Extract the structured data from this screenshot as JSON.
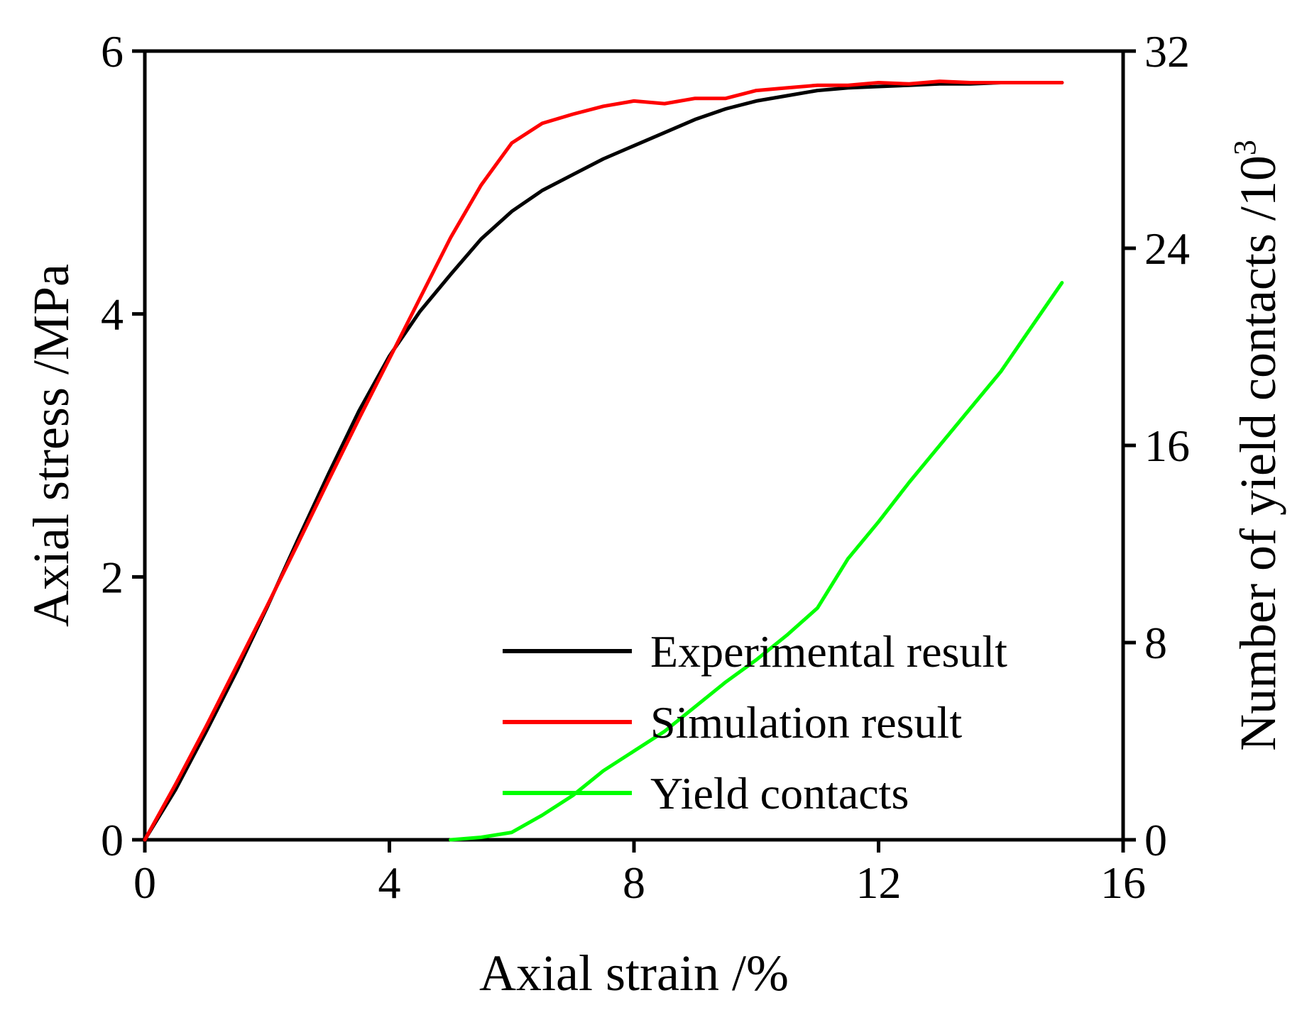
{
  "chart_data": {
    "type": "line",
    "title": "",
    "xlabel": "Axial strain /%",
    "ylabel_left": "Axial stress /MPa",
    "ylabel_right": "Number of yield contacts /10",
    "ylabel_right_superscript": "3",
    "xlim": [
      0,
      16
    ],
    "ylim_left": [
      0,
      6
    ],
    "ylim_right": [
      0,
      32
    ],
    "x_ticks": [
      "0",
      "4",
      "8",
      "12",
      "16"
    ],
    "y_left_ticks": [
      "0",
      "2",
      "4",
      "6"
    ],
    "y_right_ticks": [
      "0",
      "8",
      "16",
      "24",
      "32"
    ],
    "legend_position": "bottom-right",
    "series": [
      {
        "name": "Experimental result",
        "color": "#000000",
        "axis": "left",
        "x": [
          0,
          0.5,
          1,
          1.5,
          2,
          2.5,
          3,
          3.5,
          4,
          4.5,
          5,
          5.5,
          6,
          6.5,
          7,
          7.5,
          8,
          8.5,
          9,
          9.5,
          10,
          10.5,
          11,
          11.5,
          12,
          12.5,
          13,
          13.5,
          14,
          14.5,
          15
        ],
        "values": [
          0,
          0.38,
          0.82,
          1.28,
          1.77,
          2.28,
          2.78,
          3.26,
          3.68,
          4.02,
          4.3,
          4.57,
          4.78,
          4.94,
          5.06,
          5.18,
          5.28,
          5.38,
          5.48,
          5.56,
          5.62,
          5.66,
          5.7,
          5.72,
          5.73,
          5.74,
          5.75,
          5.75,
          5.76,
          5.76,
          5.76
        ]
      },
      {
        "name": "Simulation result",
        "color": "#ff0000",
        "axis": "left",
        "x": [
          0,
          0.5,
          1,
          1.5,
          2,
          2.5,
          3,
          3.5,
          4,
          4.5,
          5,
          5.5,
          6,
          6.5,
          7,
          7.5,
          8,
          8.5,
          9,
          9.5,
          10,
          10.5,
          11,
          11.5,
          12,
          12.5,
          13,
          13.5,
          14,
          14.5,
          15
        ],
        "values": [
          0,
          0.42,
          0.86,
          1.32,
          1.78,
          2.25,
          2.73,
          3.2,
          3.66,
          4.12,
          4.58,
          4.98,
          5.3,
          5.45,
          5.52,
          5.58,
          5.62,
          5.6,
          5.64,
          5.64,
          5.7,
          5.72,
          5.74,
          5.74,
          5.76,
          5.75,
          5.77,
          5.76,
          5.76,
          5.76,
          5.76
        ]
      },
      {
        "name": "Yield contacts",
        "color": "#00ff00",
        "axis": "right",
        "x": [
          5.0,
          5.5,
          6.0,
          6.5,
          7.0,
          7.5,
          8.0,
          8.5,
          9.0,
          9.5,
          10.0,
          10.5,
          11.0,
          11.5,
          12.0,
          12.5,
          13.0,
          13.5,
          14.0,
          14.5,
          15.0
        ],
        "values": [
          0,
          0.1,
          0.3,
          1.0,
          1.8,
          2.8,
          3.6,
          4.4,
          5.4,
          6.4,
          7.3,
          8.3,
          9.4,
          11.4,
          12.9,
          14.5,
          16.0,
          17.5,
          19.0,
          20.8,
          22.6
        ]
      }
    ]
  }
}
